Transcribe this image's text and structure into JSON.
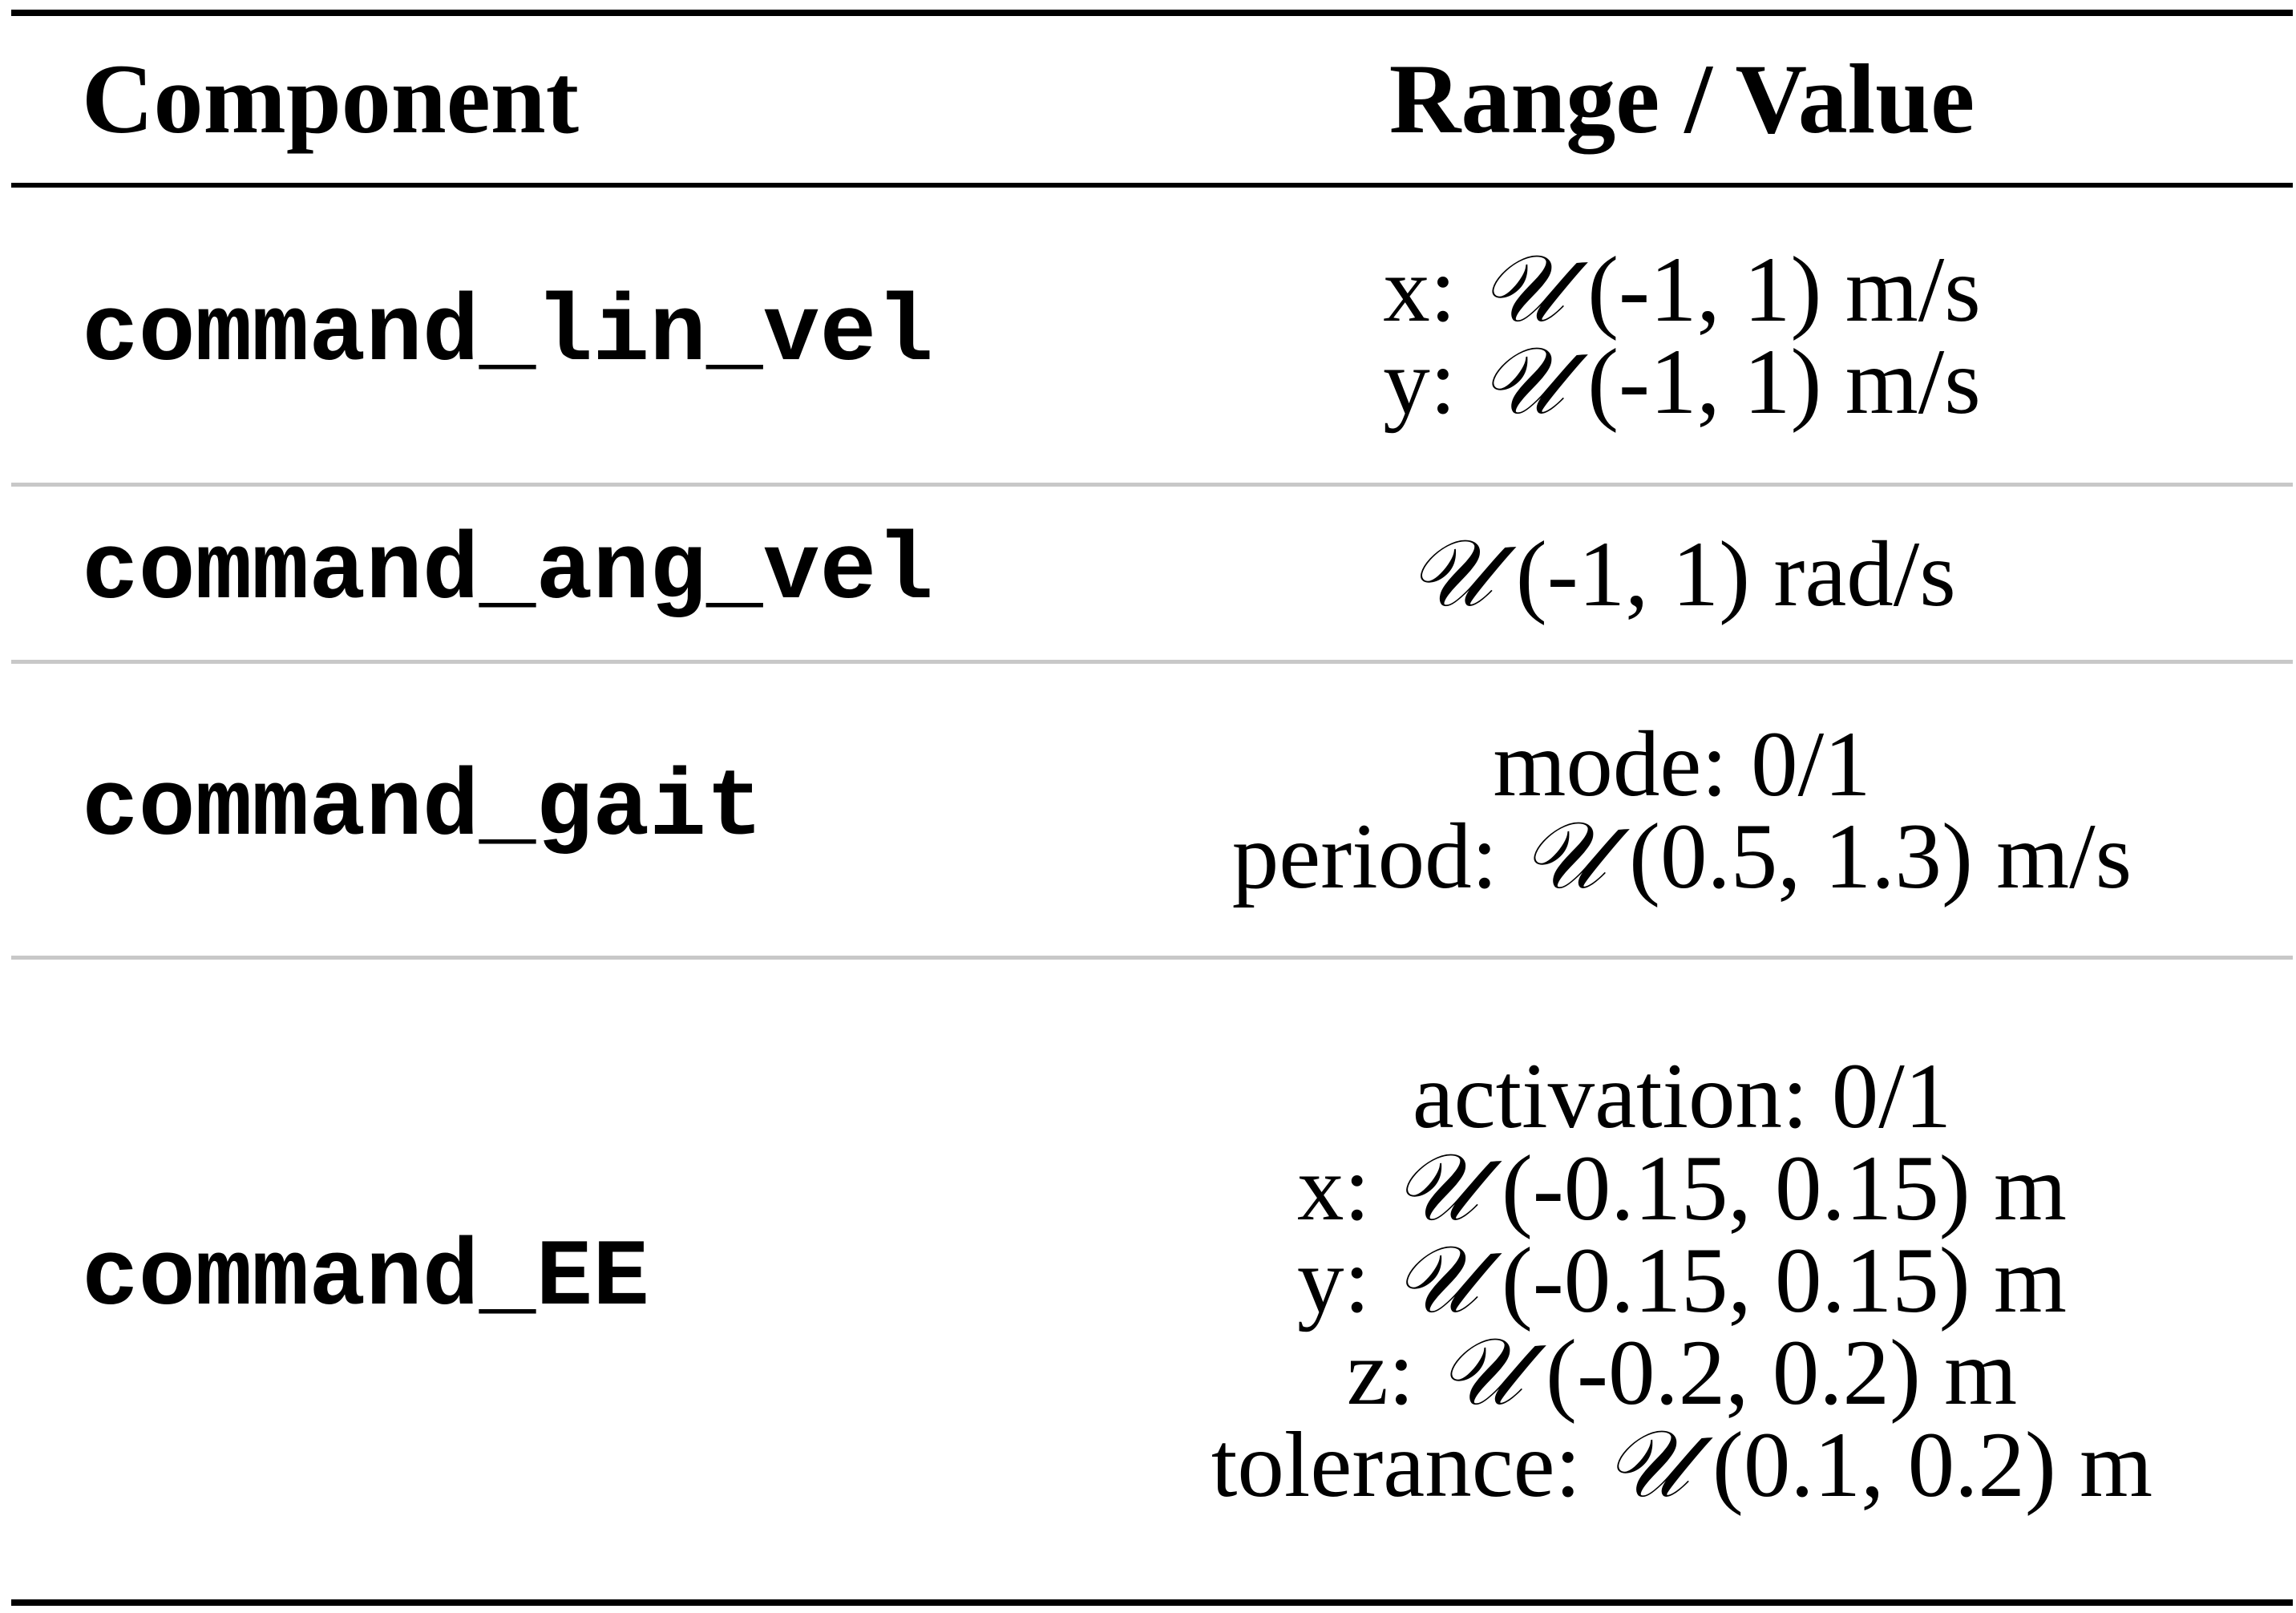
{
  "table": {
    "headers": {
      "component": "Component",
      "range_value": "Range / Value"
    },
    "rows": [
      {
        "component": "command_lin_vel",
        "values": [
          {
            "pre": "x: ",
            "dist": "𝒰",
            "post": " (-1, 1) m/s"
          },
          {
            "pre": "y: ",
            "dist": "𝒰",
            "post": " (-1, 1) m/s"
          }
        ]
      },
      {
        "component": "command_ang_vel",
        "values": [
          {
            "pre": "",
            "dist": "𝒰",
            "post": " (-1, 1) rad/s"
          }
        ]
      },
      {
        "component": "command_gait",
        "values": [
          {
            "pre": "mode: 0/1",
            "dist": "",
            "post": ""
          },
          {
            "pre": "period: ",
            "dist": "𝒰",
            "post": " (0.5, 1.3) m/s"
          }
        ]
      },
      {
        "component": "command_EE",
        "values": [
          {
            "pre": "activation: 0/1",
            "dist": "",
            "post": ""
          },
          {
            "pre": "x: ",
            "dist": "𝒰",
            "post": " (-0.15, 0.15) m"
          },
          {
            "pre": "y: ",
            "dist": "𝒰",
            "post": " (-0.15, 0.15) m"
          },
          {
            "pre": "z: ",
            "dist": "𝒰",
            "post": " (-0.2, 0.2) m"
          },
          {
            "pre": "tolerance: ",
            "dist": "𝒰",
            "post": " (0.1, 0.2) m"
          }
        ]
      }
    ]
  }
}
